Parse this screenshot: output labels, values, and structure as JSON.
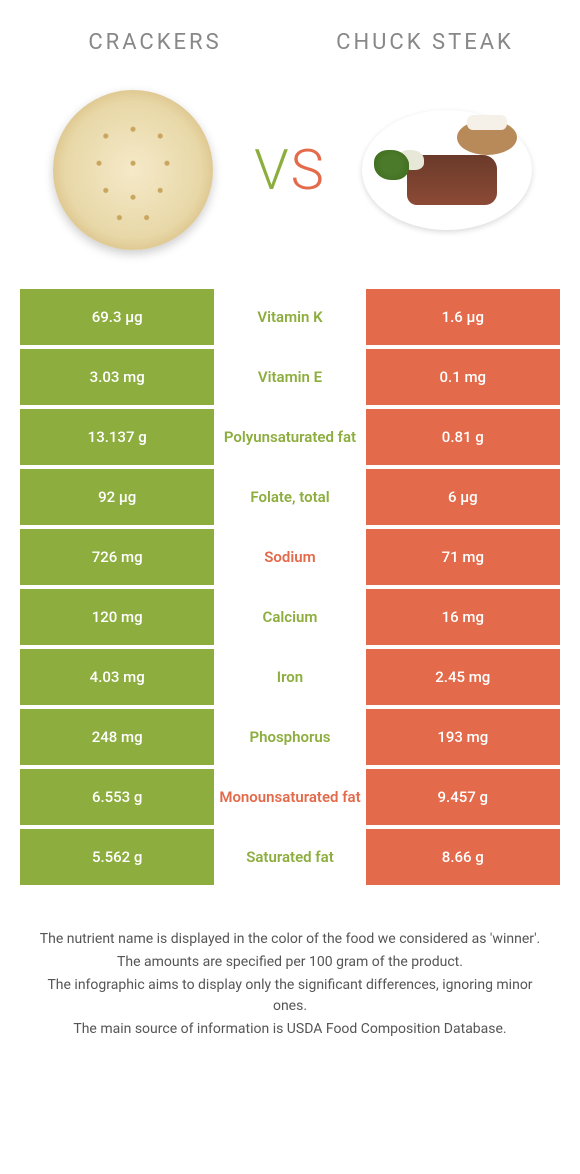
{
  "colors": {
    "left": "#8dae3e",
    "right": "#e36a4a",
    "vs_left": "#8dae3e",
    "vs_right": "#e36a4a"
  },
  "header": {
    "left_title": "Crackers",
    "right_title": "Chuck steak",
    "vs": "VS"
  },
  "rows": [
    {
      "left": "69.3 µg",
      "label": "Vitamin K",
      "right": "1.6 µg",
      "winner": "left"
    },
    {
      "left": "3.03 mg",
      "label": "Vitamin E",
      "right": "0.1 mg",
      "winner": "left"
    },
    {
      "left": "13.137 g",
      "label": "Polyunsaturated fat",
      "right": "0.81 g",
      "winner": "left"
    },
    {
      "left": "92 µg",
      "label": "Folate, total",
      "right": "6 µg",
      "winner": "left"
    },
    {
      "left": "726 mg",
      "label": "Sodium",
      "right": "71 mg",
      "winner": "right"
    },
    {
      "left": "120 mg",
      "label": "Calcium",
      "right": "16 mg",
      "winner": "left"
    },
    {
      "left": "4.03 mg",
      "label": "Iron",
      "right": "2.45 mg",
      "winner": "left"
    },
    {
      "left": "248 mg",
      "label": "Phosphorus",
      "right": "193 mg",
      "winner": "left"
    },
    {
      "left": "6.553 g",
      "label": "Monounsaturated fat",
      "right": "9.457 g",
      "winner": "right"
    },
    {
      "left": "5.562 g",
      "label": "Saturated fat",
      "right": "8.66 g",
      "winner": "left"
    }
  ],
  "footer": {
    "line1": "The nutrient name is displayed in the color of the food we considered as 'winner'.",
    "line2": "The amounts are specified per 100 gram of the product.",
    "line3": "The infographic aims to display only the significant differences, ignoring minor ones.",
    "line4": "The main source of information is USDA Food Composition Database."
  }
}
